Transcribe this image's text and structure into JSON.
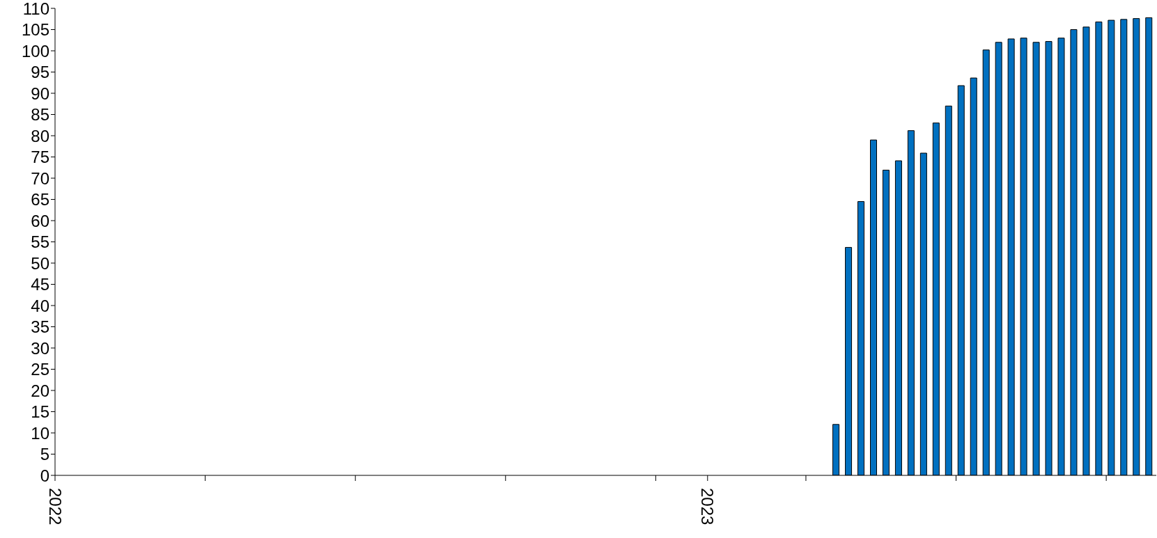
{
  "chart_data": {
    "type": "bar",
    "color": "#0070c0",
    "x": [
      "2023-03-14",
      "2023-03-21",
      "2023-03-28",
      "2023-04-04",
      "2023-04-11",
      "2023-04-18",
      "2023-04-25",
      "2023-05-02",
      "2023-05-09",
      "2023-05-16",
      "2023-05-23",
      "2023-05-30",
      "2023-06-06",
      "2023-06-13",
      "2023-06-20",
      "2023-06-27",
      "2023-07-04",
      "2023-07-11",
      "2023-07-18",
      "2023-07-25",
      "2023-08-01",
      "2023-08-08",
      "2023-08-15",
      "2023-08-22",
      "2023-08-29",
      "2023-09-05"
    ],
    "values": [
      12.0,
      53.7,
      64.5,
      79.0,
      71.9,
      74.1,
      81.2,
      75.9,
      83.0,
      87.0,
      91.8,
      93.6,
      100.2,
      102.0,
      102.8,
      103.0,
      102.0,
      102.2,
      103.0,
      105.0,
      105.6,
      106.8,
      107.2,
      107.4,
      107.6,
      107.8
    ],
    "xlim": [
      "2022-01-01",
      "2023-09-09"
    ],
    "xticks": [
      {
        "value": "2022-01-01",
        "label": "2022"
      },
      {
        "value": "2022-03-26",
        "label": null
      },
      {
        "value": "2022-06-18",
        "label": null
      },
      {
        "value": "2022-09-10",
        "label": null
      },
      {
        "value": "2022-12-03",
        "label": null
      },
      {
        "value": "2023-01-01",
        "label": "2023"
      },
      {
        "value": "2023-02-25",
        "label": null
      },
      {
        "value": "2023-05-20",
        "label": null
      },
      {
        "value": "2023-08-12",
        "label": null
      }
    ],
    "ylim": [
      0,
      110
    ],
    "yticks": [
      0,
      5,
      10,
      15,
      20,
      25,
      30,
      35,
      40,
      45,
      50,
      55,
      60,
      65,
      70,
      75,
      80,
      85,
      90,
      95,
      100,
      105,
      110
    ],
    "grid": false,
    "legend": false
  }
}
